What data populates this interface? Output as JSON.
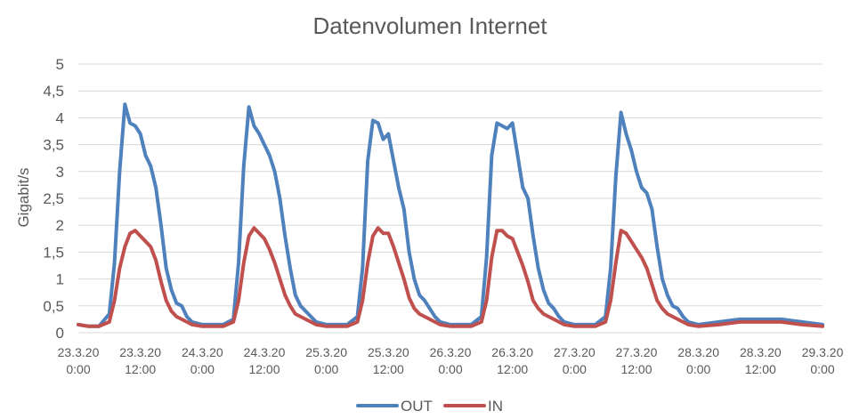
{
  "chart_data": {
    "type": "line",
    "title": "Datenvolumen Internet",
    "ylabel": "Gigabit/s",
    "xlabel": "",
    "ylim": [
      0,
      5
    ],
    "yticks": [
      "0",
      "0,5",
      "1",
      "1,5",
      "2",
      "2,5",
      "3",
      "3,5",
      "4",
      "4,5",
      "5"
    ],
    "xticks": [
      {
        "date": "23.3.20",
        "time": "0:00"
      },
      {
        "date": "23.3.20",
        "time": "12:00"
      },
      {
        "date": "24.3.20",
        "time": "0:00"
      },
      {
        "date": "24.3.20",
        "time": "12:00"
      },
      {
        "date": "25.3.20",
        "time": "0:00"
      },
      {
        "date": "25.3.20",
        "time": "12:00"
      },
      {
        "date": "26.3.20",
        "time": "0:00"
      },
      {
        "date": "26.3.20",
        "time": "12:00"
      },
      {
        "date": "27.3.20",
        "time": "0:00"
      },
      {
        "date": "27.3.20",
        "time": "12:00"
      },
      {
        "date": "28.3.20",
        "time": "0:00"
      },
      {
        "date": "28.3.20",
        "time": "12:00"
      },
      {
        "date": "29.3.20",
        "time": "0:00"
      }
    ],
    "x": [
      "23.3.20 0:00",
      "23.3.20 2:00",
      "23.3.20 4:00",
      "23.3.20 6:00",
      "23.3.20 7:00",
      "23.3.20 8:00",
      "23.3.20 9:00",
      "23.3.20 10:00",
      "23.3.20 11:00",
      "23.3.20 12:00",
      "23.3.20 13:00",
      "23.3.20 14:00",
      "23.3.20 15:00",
      "23.3.20 16:00",
      "23.3.20 17:00",
      "23.3.20 18:00",
      "23.3.20 19:00",
      "23.3.20 20:00",
      "23.3.20 21:00",
      "23.3.20 22:00",
      "24.3.20 0:00",
      "24.3.20 2:00",
      "24.3.20 4:00",
      "24.3.20 6:00",
      "24.3.20 7:00",
      "24.3.20 8:00",
      "24.3.20 9:00",
      "24.3.20 10:00",
      "24.3.20 11:00",
      "24.3.20 12:00",
      "24.3.20 13:00",
      "24.3.20 14:00",
      "24.3.20 15:00",
      "24.3.20 16:00",
      "24.3.20 17:00",
      "24.3.20 18:00",
      "24.3.20 19:00",
      "24.3.20 20:00",
      "24.3.20 21:00",
      "24.3.20 22:00",
      "25.3.20 0:00",
      "25.3.20 2:00",
      "25.3.20 4:00",
      "25.3.20 6:00",
      "25.3.20 7:00",
      "25.3.20 8:00",
      "25.3.20 9:00",
      "25.3.20 10:00",
      "25.3.20 11:00",
      "25.3.20 12:00",
      "25.3.20 13:00",
      "25.3.20 14:00",
      "25.3.20 15:00",
      "25.3.20 16:00",
      "25.3.20 17:00",
      "25.3.20 18:00",
      "25.3.20 19:00",
      "25.3.20 20:00",
      "25.3.20 21:00",
      "25.3.20 22:00",
      "26.3.20 0:00",
      "26.3.20 2:00",
      "26.3.20 4:00",
      "26.3.20 6:00",
      "26.3.20 7:00",
      "26.3.20 8:00",
      "26.3.20 9:00",
      "26.3.20 10:00",
      "26.3.20 11:00",
      "26.3.20 12:00",
      "26.3.20 13:00",
      "26.3.20 14:00",
      "26.3.20 15:00",
      "26.3.20 16:00",
      "26.3.20 17:00",
      "26.3.20 18:00",
      "26.3.20 19:00",
      "26.3.20 20:00",
      "26.3.20 21:00",
      "26.3.20 22:00",
      "27.3.20 0:00",
      "27.3.20 2:00",
      "27.3.20 4:00",
      "27.3.20 6:00",
      "27.3.20 7:00",
      "27.3.20 8:00",
      "27.3.20 9:00",
      "27.3.20 10:00",
      "27.3.20 11:00",
      "27.3.20 12:00",
      "27.3.20 13:00",
      "27.3.20 14:00",
      "27.3.20 15:00",
      "27.3.20 16:00",
      "27.3.20 17:00",
      "27.3.20 18:00",
      "27.3.20 19:00",
      "27.3.20 20:00",
      "27.3.20 21:00",
      "27.3.20 22:00",
      "28.3.20 0:00",
      "28.3.20 4:00",
      "28.3.20 8:00",
      "28.3.20 12:00",
      "28.3.20 16:00",
      "28.3.20 20:00",
      "29.3.20 0:00"
    ],
    "series": [
      {
        "name": "OUT",
        "color": "#4f81bd",
        "values": [
          0.15,
          0.12,
          0.12,
          0.35,
          1.3,
          3.0,
          4.25,
          3.9,
          3.85,
          3.7,
          3.3,
          3.1,
          2.7,
          2.0,
          1.2,
          0.8,
          0.55,
          0.5,
          0.3,
          0.2,
          0.15,
          0.15,
          0.15,
          0.25,
          1.3,
          3.1,
          4.2,
          3.85,
          3.7,
          3.5,
          3.3,
          3.0,
          2.5,
          1.8,
          1.2,
          0.7,
          0.5,
          0.4,
          0.3,
          0.2,
          0.15,
          0.15,
          0.15,
          0.3,
          1.2,
          3.2,
          3.95,
          3.9,
          3.6,
          3.7,
          3.2,
          2.7,
          2.3,
          1.5,
          1.0,
          0.7,
          0.6,
          0.45,
          0.3,
          0.2,
          0.15,
          0.15,
          0.15,
          0.3,
          1.4,
          3.3,
          3.9,
          3.85,
          3.8,
          3.9,
          3.3,
          2.7,
          2.5,
          1.8,
          1.2,
          0.8,
          0.55,
          0.45,
          0.3,
          0.2,
          0.15,
          0.15,
          0.15,
          0.3,
          1.2,
          2.9,
          4.1,
          3.7,
          3.4,
          3.0,
          2.7,
          2.6,
          2.3,
          1.6,
          1.0,
          0.7,
          0.5,
          0.45,
          0.3,
          0.2,
          0.15,
          0.2,
          0.25,
          0.25,
          0.25,
          0.2,
          0.15
        ]
      },
      {
        "name": "IN",
        "color": "#c0504d",
        "values": [
          0.15,
          0.12,
          0.12,
          0.2,
          0.6,
          1.2,
          1.6,
          1.85,
          1.9,
          1.8,
          1.7,
          1.6,
          1.35,
          0.95,
          0.6,
          0.4,
          0.3,
          0.25,
          0.2,
          0.15,
          0.12,
          0.12,
          0.12,
          0.2,
          0.6,
          1.3,
          1.8,
          1.95,
          1.85,
          1.75,
          1.55,
          1.3,
          1.0,
          0.7,
          0.5,
          0.35,
          0.3,
          0.25,
          0.2,
          0.15,
          0.12,
          0.12,
          0.12,
          0.2,
          0.6,
          1.3,
          1.8,
          1.95,
          1.85,
          1.85,
          1.6,
          1.3,
          1.0,
          0.65,
          0.45,
          0.35,
          0.3,
          0.25,
          0.2,
          0.15,
          0.12,
          0.12,
          0.12,
          0.2,
          0.6,
          1.4,
          1.9,
          1.9,
          1.8,
          1.75,
          1.5,
          1.25,
          0.95,
          0.6,
          0.45,
          0.35,
          0.3,
          0.25,
          0.2,
          0.15,
          0.12,
          0.12,
          0.12,
          0.2,
          0.6,
          1.3,
          1.9,
          1.85,
          1.7,
          1.55,
          1.4,
          1.2,
          0.9,
          0.6,
          0.45,
          0.35,
          0.3,
          0.25,
          0.2,
          0.15,
          0.12,
          0.15,
          0.2,
          0.2,
          0.2,
          0.15,
          0.12
        ]
      }
    ],
    "grid": true,
    "legend_position": "bottom"
  }
}
